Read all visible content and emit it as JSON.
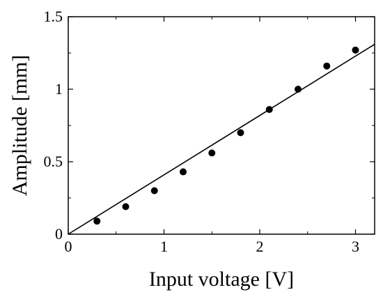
{
  "chart_data": {
    "type": "scatter",
    "xlabel": "Input voltage [V]",
    "ylabel": "Amplitude [mm]",
    "xlim": [
      0,
      3.2
    ],
    "ylim": [
      0,
      1.5
    ],
    "grid": false,
    "x_ticks": [
      0,
      1,
      2,
      3
    ],
    "x_tick_labels": [
      "0",
      "1",
      "2",
      "3"
    ],
    "y_ticks": [
      0,
      0.5,
      1,
      1.5
    ],
    "y_tick_labels": [
      "0",
      "0.5",
      "1",
      "1.5"
    ],
    "series": [
      {
        "type": "scatter",
        "x": [
          0.3,
          0.6,
          0.9,
          1.2,
          1.5,
          1.8,
          2.1,
          2.4,
          2.7,
          3.0
        ],
        "y": [
          0.09,
          0.19,
          0.3,
          0.43,
          0.56,
          0.7,
          0.86,
          1.0,
          1.16,
          1.27
        ]
      },
      {
        "type": "line",
        "x": [
          0,
          3.2
        ],
        "y": [
          0,
          1.31
        ]
      }
    ]
  }
}
